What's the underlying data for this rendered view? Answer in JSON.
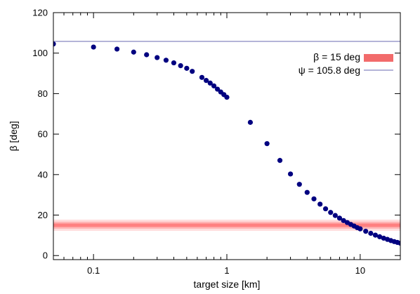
{
  "chart_data": {
    "type": "scatter",
    "title": "",
    "xlabel": "target size [km]",
    "ylabel": "β [deg]",
    "xscale": "log",
    "xlim": [
      0.05,
      20
    ],
    "ylim": [
      -2,
      120
    ],
    "xticks": [
      0.1,
      1,
      10
    ],
    "xtick_labels": [
      "0.1",
      "1",
      "10"
    ],
    "yticks": [
      0,
      20,
      40,
      60,
      80,
      100,
      120
    ],
    "ytick_labels": [
      "0",
      "20",
      "40",
      "60",
      "80",
      "100",
      "120"
    ],
    "grid": false,
    "legend_position": "top-right",
    "series": [
      {
        "label": "",
        "color": "#000080",
        "points": [
          [
            0.05,
            104.5
          ],
          [
            0.1,
            103.0
          ],
          [
            0.15,
            102.0
          ],
          [
            0.2,
            100.5
          ],
          [
            0.25,
            99.2
          ],
          [
            0.3,
            97.8
          ],
          [
            0.35,
            96.5
          ],
          [
            0.4,
            95.2
          ],
          [
            0.45,
            93.8
          ],
          [
            0.5,
            92.5
          ],
          [
            0.55,
            91.0
          ],
          [
            0.65,
            88.0
          ],
          [
            0.7,
            86.5
          ],
          [
            0.75,
            85.2
          ],
          [
            0.8,
            83.8
          ],
          [
            0.85,
            82.2
          ],
          [
            0.9,
            80.8
          ],
          [
            0.95,
            79.5
          ],
          [
            1.0,
            78.2
          ],
          [
            1.5,
            65.8
          ],
          [
            2.0,
            55.3
          ],
          [
            2.5,
            47.0
          ],
          [
            3.0,
            40.3
          ],
          [
            3.5,
            35.2
          ],
          [
            4.0,
            31.2
          ],
          [
            4.5,
            28.0
          ],
          [
            5.0,
            25.4
          ],
          [
            5.5,
            23.1
          ],
          [
            6.0,
            21.3
          ],
          [
            6.5,
            19.8
          ],
          [
            7.0,
            18.5
          ],
          [
            7.5,
            17.3
          ],
          [
            8.0,
            16.3
          ],
          [
            8.5,
            15.4
          ],
          [
            9.0,
            14.6
          ],
          [
            9.5,
            13.8
          ],
          [
            10.0,
            13.2
          ],
          [
            11.0,
            12.0
          ],
          [
            12.0,
            11.0
          ],
          [
            13.0,
            10.1
          ],
          [
            14.0,
            9.3
          ],
          [
            15.0,
            8.6
          ],
          [
            16.0,
            8.0
          ],
          [
            17.0,
            7.4
          ],
          [
            18.0,
            6.9
          ],
          [
            19.0,
            6.5
          ],
          [
            20.0,
            6.1
          ]
        ]
      }
    ],
    "reference_lines": [
      {
        "label": "β = 15 deg",
        "y": 15,
        "color": "#ff4040",
        "style": "band"
      },
      {
        "label": "ψ = 105.8 deg",
        "y": 105.8,
        "color": "#6a6ab0",
        "style": "line"
      }
    ]
  }
}
